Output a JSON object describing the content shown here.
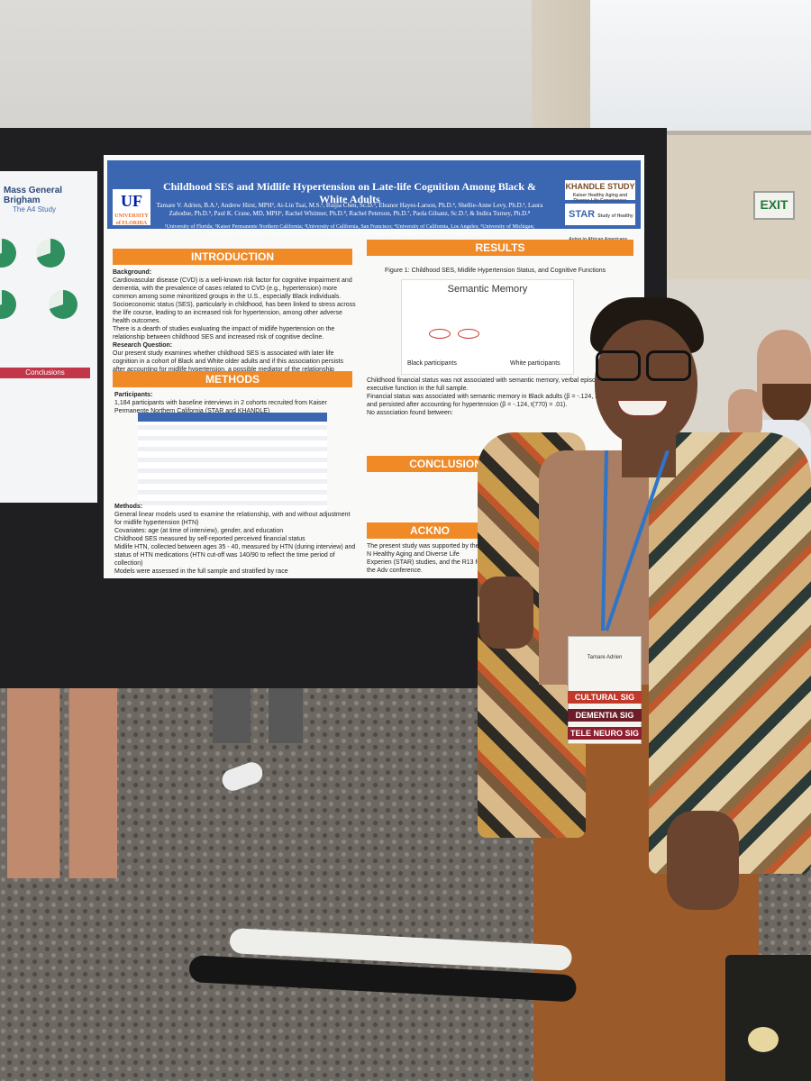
{
  "scene": {
    "exit_sign": "EXIT"
  },
  "left_poster": {
    "org": "Mass General Brigham",
    "study": "The A4 Study",
    "section": "Conclusions"
  },
  "poster": {
    "logo_text": "UF",
    "logo_sub": "UNIVERSITY of FLORIDA",
    "title": "Childhood SES and Midlife Hypertension on Late-life Cognition Among Black & White Adults",
    "authors": "Tamare V. Adrien, B.A.¹, Andrew Hirst, MPH², Ai-Lin Tsai, M.S.², Ruijia Chen, Sc.D.³, Eleanor Hayes-Larson, Ph.D.⁴, Shellie-Anne Levy, Ph.D.¹, Laura Zahodne, Ph.D.⁵, Paul K. Crane, MD, MPH⁶, Rachel Whitmer, Ph.D.⁸, Rachel Peterson, Ph.D.⁷, Paola Gilsanz, Sc.D.², & Indira Turney, Ph.D.⁸",
    "affiliations": "¹University of Florida; ²Kaiser Permanente Northern California; ³University of California, San Francisco; ⁴University of California, Los Angeles; ⁵University of Michigan; ⁶University of Washington; ⁷University of Montana; ⁸Columbia University Irving Medical Center; ⁹University of California, Davis",
    "khandle": "KHANDLE STUDY",
    "khandle_sub": "Kaiser Healthy Aging and Diverse Life Experiences",
    "star": "STAR",
    "star_sub": "Study of Healthy Aging in African Americans",
    "sections": {
      "introduction": "INTRODUCTION",
      "results": "RESULTS",
      "methods": "METHODS",
      "conclusions": "CONCLUSIONS AND FUTURE DIRE",
      "acknowledgments": "ACKNO"
    },
    "background_label": "Background:",
    "background": [
      "Cardiovascular disease (CVD) is a well-known risk factor for cognitive impairment and dementia, with the prevalence of cases related to CVD (e.g., hypertension) more common among some minoritized groups in the U.S., especially Black individuals.",
      "Socioeconomic status (SES), particularly in childhood, has been linked to stress across the life course, leading to an increased risk for hypertension, among other adverse health outcomes.",
      "There is a dearth of studies evaluating the impact of midlife hypertension on the relationship between childhood SES and increased risk of cognitive decline."
    ],
    "research_q_label": "Research Question:",
    "research_q": "Our present study examines whether childhood SES is associated with later life cognition in a cohort of Black and White older adults and if this association persists after accounting for midlife hypertension, a possible mediator of the relationship between childhood SES and late-life cognition.",
    "figure_caption": "Figure 1: Childhood SES, Midlife Hypertension Status, and Cognitive Functions",
    "figure_title": "Semantic Memory",
    "figure_groups": [
      "Black participants",
      "White participants"
    ],
    "results": [
      "Childhood financial status was not associated with semantic memory, verbal episo memory, or executive function in the full sample.",
      "Financial status was associated with semantic memory in Black adults (β = -.124, 2.52, p = .01), and persisted after accounting for hypertension (β = -.124, t(770) = .01).",
      "No association found between:"
    ],
    "participants_label": "Participants:",
    "participants": "1,184 participants with baseline interviews in 2 cohorts recruited from Kaiser Permanente Northern California (STAR and KHANDLE)",
    "methods_label": "Methods:",
    "methods": [
      "General linear models used to examine the relationship, with and without adjustment for midlife hypertension (HTN)",
      "Covariates: age (at time of interview), gender, and education",
      "Childhood SES measured by self-reported perceived financial status",
      "Midlife HTN, collected between ages 35 - 40, measured by HTN (during interview) and status of HTN medications (HTN cut-off was 140/90 to reflect the time period of collection)",
      "Models were assessed in the full sample and stratified by race"
    ],
    "ack": "The present study was supported by the N Healthy Aging and Diverse Life Experien (STAR) studies, and the R13 for the Adv conference."
  },
  "badge": {
    "name": "Tamare Adrien",
    "ribbons": [
      "CULTURAL SIG",
      "DEMENTIA SIG",
      "TELE NEURO SIG"
    ],
    "ribbon_colors": [
      "#c0392b",
      "#6b1d2a",
      "#8e1f2f"
    ]
  },
  "colors": {
    "header_blue": "#3b66b1",
    "section_orange": "#ef8a27",
    "board": "#1f1f22"
  }
}
